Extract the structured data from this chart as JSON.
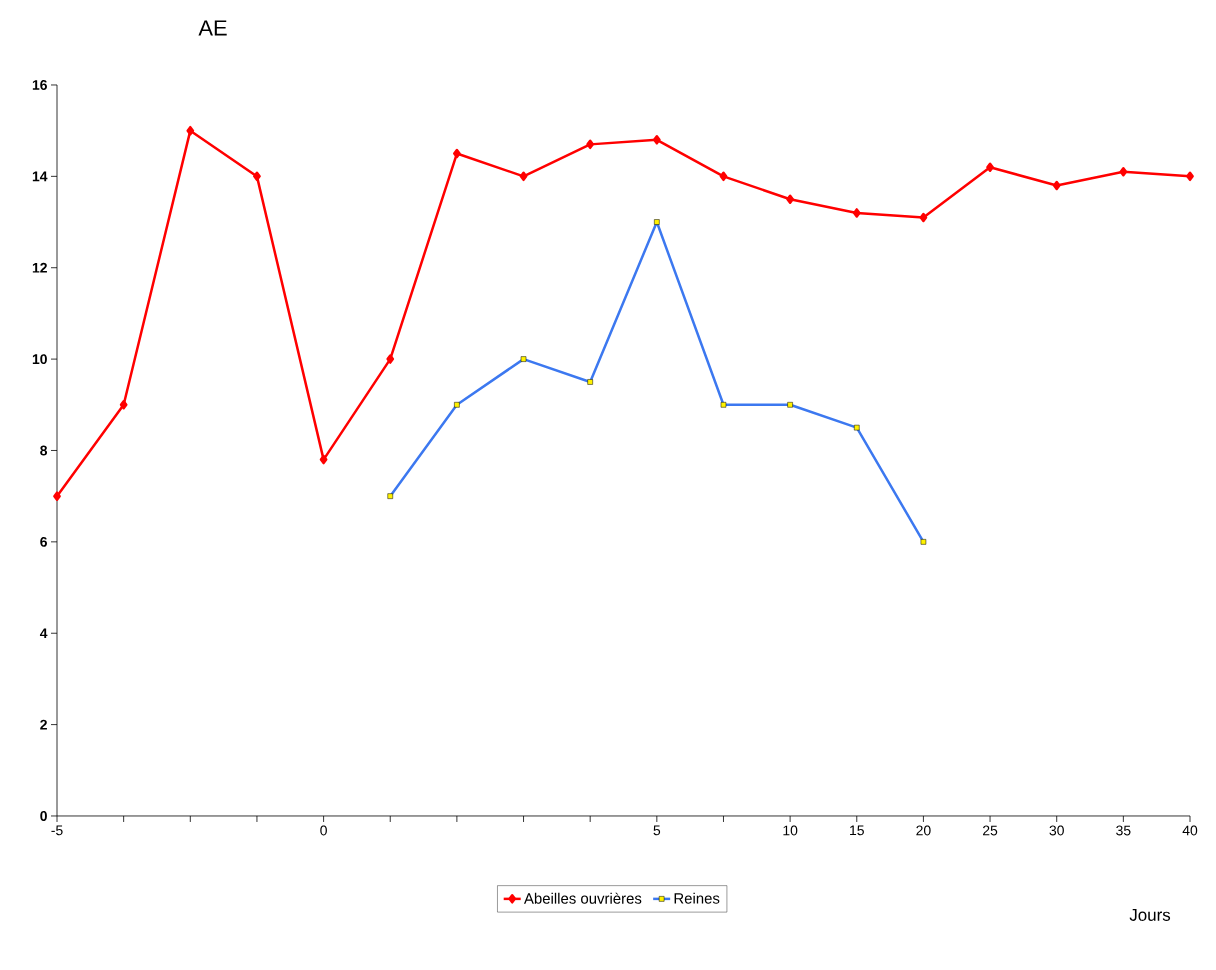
{
  "chart_data": {
    "type": "line",
    "ylabel": "AE",
    "xlabel": "Jours",
    "categories": [
      "-5",
      null,
      null,
      null,
      "0",
      null,
      null,
      null,
      null,
      "5",
      null,
      "10",
      "15",
      "20",
      "25",
      "30",
      "35",
      "40"
    ],
    "series": [
      {
        "name": "Abeilles ouvrières",
        "color": "#ff0000",
        "marker": "diamond",
        "values": [
          7,
          9,
          15,
          14,
          7.8,
          10,
          14.5,
          14,
          14.7,
          14.8,
          14,
          13.5,
          13.2,
          13.1,
          14.2,
          13.8,
          14.1,
          14
        ]
      },
      {
        "name": "Reines",
        "color": "#3c78f0",
        "marker": "square",
        "values": [
          null,
          null,
          null,
          null,
          null,
          7,
          9,
          10,
          9.5,
          13,
          9,
          9,
          8.5,
          6,
          null,
          null,
          null,
          null
        ]
      }
    ],
    "ylim": [
      0,
      16
    ],
    "yticks": [
      0,
      2,
      4,
      6,
      8,
      10,
      12,
      14,
      16
    ],
    "grid": false,
    "legend": "bottom"
  }
}
